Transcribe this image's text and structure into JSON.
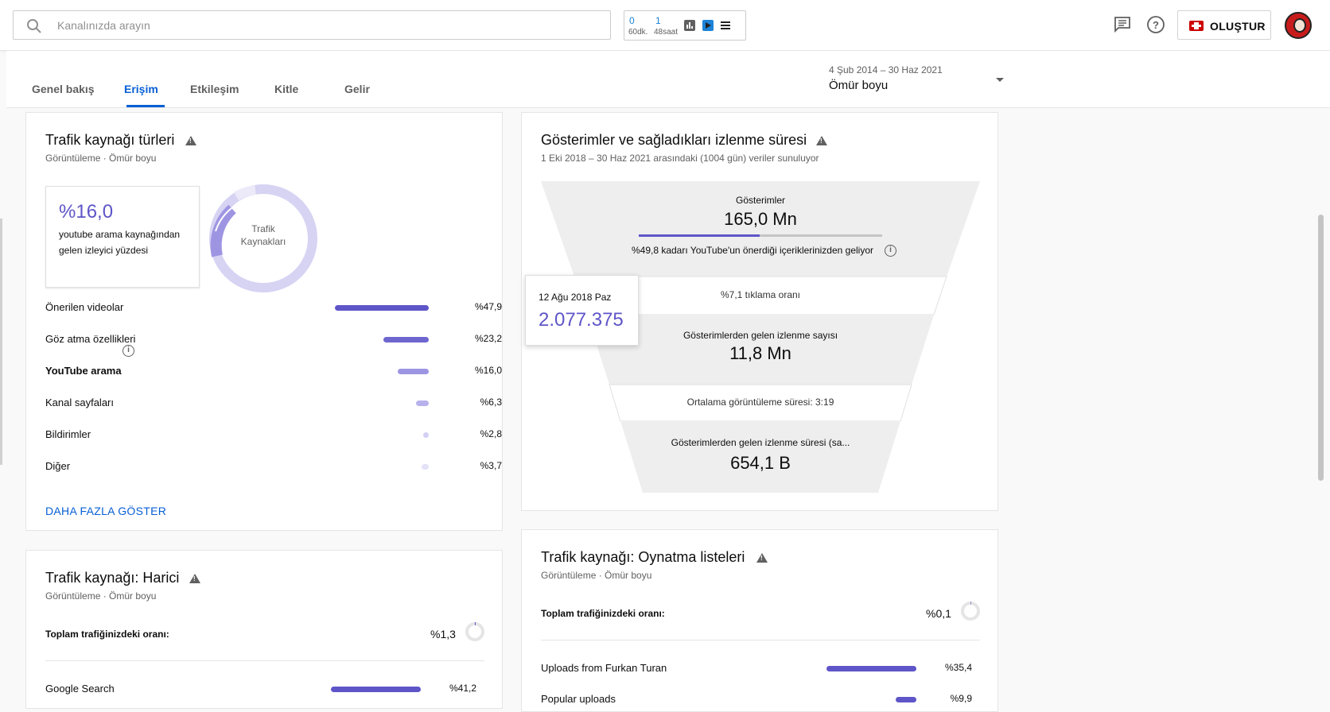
{
  "topbar": {
    "search_placeholder": "Kanalınızda arayın",
    "realtime": {
      "n1": "0",
      "u1": "60dk.",
      "n2": "1",
      "u2": "48saat"
    },
    "create_label": "OLUŞTUR"
  },
  "tabs": [
    {
      "label": "Genel bakış"
    },
    {
      "label": "Erişim"
    },
    {
      "label": "Etkileşim"
    },
    {
      "label": "Kitle"
    },
    {
      "label": "Gelir"
    }
  ],
  "date_range": {
    "range": "4 Şub 2014 – 30 Haz 2021",
    "label": "Ömür boyu"
  },
  "traffic_types": {
    "title": "Trafik kaynağı türleri",
    "subtitle": "Görüntüleme · Ömür boyu",
    "kpi_value": "%16,0",
    "kpi_desc": "youtube arama kaynağından gelen izleyici yüzdesi",
    "donut_label_1": "Trafik",
    "donut_label_2": "Kaynakları",
    "rows": [
      {
        "label": "Önerilen videolar",
        "value": "%47,9",
        "pct": 47.9
      },
      {
        "label": "Göz atma özellikleri",
        "value": "%23,2",
        "pct": 23.2
      },
      {
        "label": "YouTube arama",
        "value": "%16,0",
        "pct": 16.0
      },
      {
        "label": "Kanal sayfaları",
        "value": "%6,3",
        "pct": 6.3
      },
      {
        "label": "Bildirimler",
        "value": "%2,8",
        "pct": 2.8
      },
      {
        "label": "Diğer",
        "value": "%3,7",
        "pct": 3.7
      }
    ],
    "more_label": "DAHA FAZLA GÖSTER"
  },
  "external": {
    "title": "Trafik kaynağı: Harici",
    "subtitle": "Görüntüleme · Ömür boyu",
    "share_label": "Toplam trafiğinizdeki oranı:",
    "share_value": "%1,3",
    "rows": [
      {
        "label": "Google Search",
        "value": "%41,2"
      }
    ]
  },
  "impressions": {
    "title": "Gösterimler ve sağladıkları izlenme süresi",
    "subtitle": "1 Eki 2018 – 30 Haz 2021 arasındaki (1004 gün) veriler sunuluyor",
    "impr_label": "Gösterimler",
    "impr_value": "165,0 Mn",
    "impr_progress": 0.498,
    "impr_note": "%49,8 kadarı YouTube'un önerdiği içeriklerinizden geliyor",
    "ctr": "%7,1 tıklama oranı",
    "views_label": "Gösterimlerden gelen izlenme sayısı",
    "views_value": "11,8 Mn",
    "avg": "Ortalama görüntüleme süresi: 3:19",
    "watch_label": "Gösterimlerden gelen izlenme süresi (sa...",
    "watch_value": "654,1 B",
    "tooltip_date": "12 Ağu 2018 Paz",
    "tooltip_value": "2.077.375"
  },
  "playlists": {
    "title": "Trafik kaynağı: Oynatma listeleri",
    "subtitle": "Görüntüleme · Ömür boyu",
    "share_label": "Toplam trafiğinizdeki oranı:",
    "share_value": "%0,1",
    "rows": [
      {
        "label": "Uploads from Furkan Turan",
        "value": "%35,4"
      },
      {
        "label": "Popular uploads",
        "value": "%9,9"
      }
    ]
  }
}
